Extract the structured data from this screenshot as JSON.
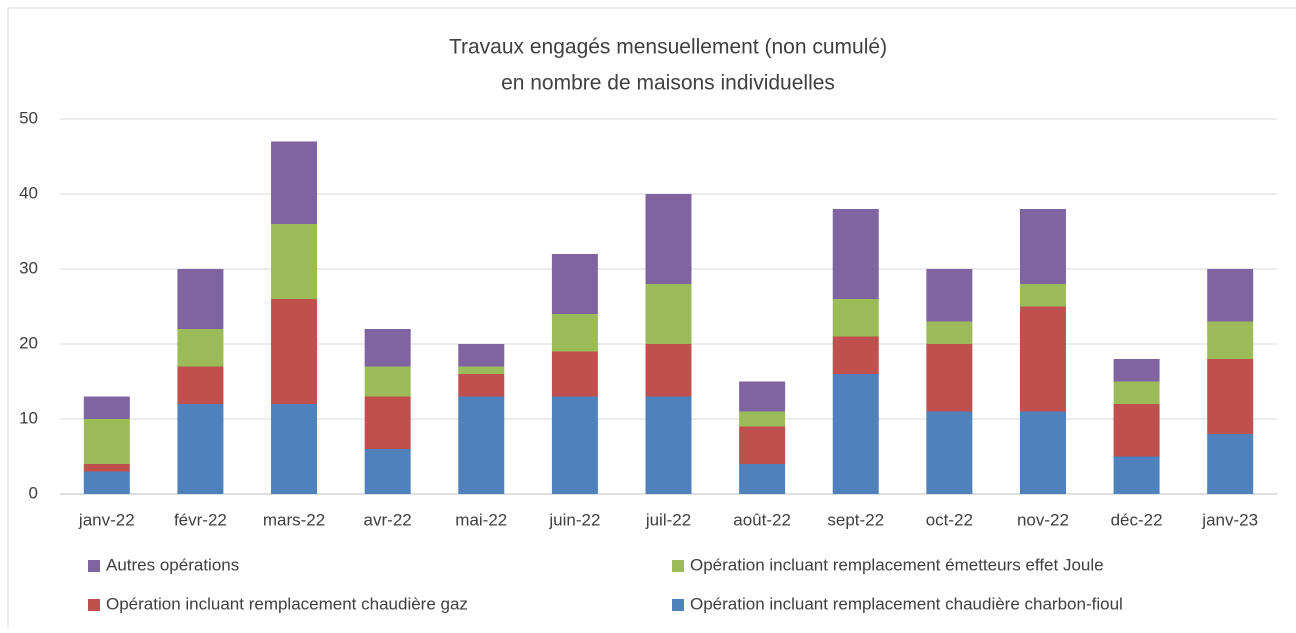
{
  "chart_data": {
    "type": "stacked_bar",
    "title": [
      "Travaux engagés mensuellement (non cumulé)",
      "en nombre de maisons individuelles"
    ],
    "categories": [
      "janv-22",
      "févr-22",
      "mars-22",
      "avr-22",
      "mai-22",
      "juin-22",
      "juil-22",
      "août-22",
      "sept-22",
      "oct-22",
      "nov-22",
      "déc-22",
      "janv-23"
    ],
    "series": [
      {
        "name": "Opération incluant remplacement chaudière charbon-fioul",
        "color": "#4f81bd",
        "values": [
          3,
          12,
          12,
          6,
          13,
          13,
          13,
          4,
          16,
          11,
          11,
          5,
          8
        ]
      },
      {
        "name": "Opération incluant remplacement chaudière gaz",
        "color": "#c0504d",
        "values": [
          1,
          5,
          14,
          7,
          3,
          6,
          7,
          5,
          5,
          9,
          14,
          7,
          10
        ]
      },
      {
        "name": "Opération incluant remplacement émetteurs effet Joule",
        "color": "#9bbb59",
        "values": [
          6,
          5,
          10,
          4,
          1,
          5,
          8,
          2,
          5,
          3,
          3,
          3,
          5
        ]
      },
      {
        "name": "Autres opérations",
        "color": "#8064a2",
        "values": [
          3,
          8,
          11,
          5,
          3,
          8,
          12,
          4,
          12,
          7,
          10,
          3,
          7
        ]
      }
    ],
    "ylim": [
      0,
      50
    ],
    "yticks": [
      0,
      10,
      20,
      30,
      40,
      50
    ],
    "grid": true,
    "legend": "bottom"
  }
}
